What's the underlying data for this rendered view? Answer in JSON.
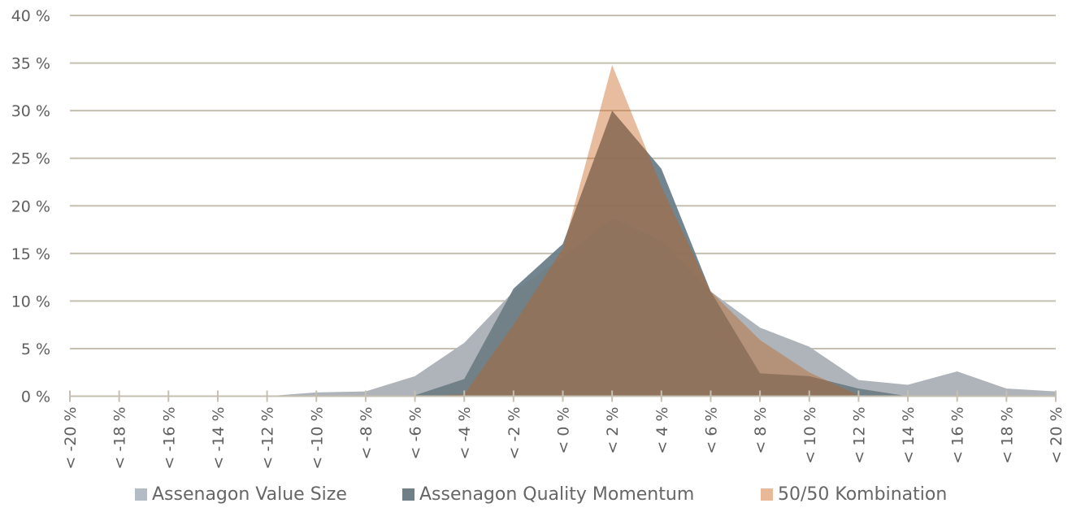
{
  "chart_data": {
    "type": "area",
    "title": "",
    "xlabel": "",
    "ylabel": "",
    "categories": [
      "< -20 %",
      "< -18 %",
      "< -16 %",
      "< -14 %",
      "< -12 %",
      "< -10 %",
      "< -8 %",
      "< -6 %",
      "< -4 %",
      "< -2 %",
      "< 0 %",
      "< 2 %",
      "< 4 %",
      "< 6 %",
      "< 8 %",
      "< 10 %",
      "< 12 %",
      "< 14 %",
      "< 16 %",
      "< 18 %",
      "< 20 %"
    ],
    "ylim": [
      0,
      40
    ],
    "yticks": [
      0,
      5,
      10,
      15,
      20,
      25,
      30,
      35,
      40
    ],
    "ytick_labels": [
      "0 %",
      "5 %",
      "10 %",
      "15 %",
      "20 %",
      "25 %",
      "30 %",
      "35 %",
      "40 %"
    ],
    "grid": "horizontal",
    "legend": "bottom",
    "series": [
      {
        "name": "Assenagon Value Size",
        "color": "#b3bcc4",
        "values": [
          0,
          0,
          0,
          0,
          0,
          0.4,
          0.5,
          2.1,
          5.6,
          11.0,
          14.6,
          18.7,
          16.3,
          11.0,
          7.2,
          5.2,
          1.7,
          1.2,
          2.6,
          0.8,
          0.5
        ]
      },
      {
        "name": "Assenagon Quality Momentum",
        "color": "#6b7e89",
        "values": [
          0,
          0,
          0,
          0,
          0,
          0,
          0,
          0.1,
          1.8,
          11.3,
          16.0,
          30.0,
          23.9,
          11.0,
          2.4,
          2.1,
          0.8,
          0,
          0,
          0,
          0
        ]
      },
      {
        "name": "50/50 Kombination",
        "color": "#e8b898",
        "values": [
          0,
          0,
          0,
          0,
          0,
          0,
          0,
          0,
          0.2,
          7.5,
          15.5,
          34.8,
          22.0,
          11.0,
          5.9,
          2.5,
          0.1,
          0,
          0,
          0,
          0
        ]
      }
    ]
  }
}
